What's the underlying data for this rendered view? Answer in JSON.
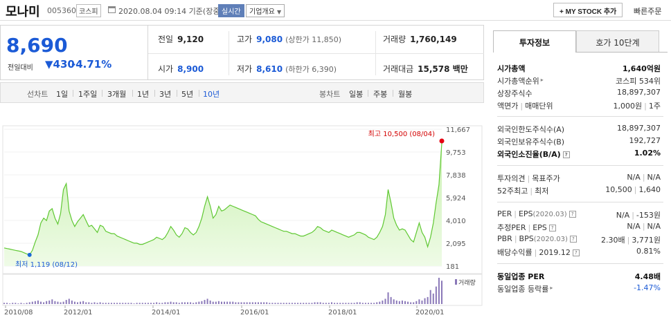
{
  "header": {
    "stock_name": "모나미",
    "stock_code": "005360",
    "market": "코스피",
    "datetime": "2020.08.04 09:14 기준(장중)",
    "realtime_label": "실시간",
    "overview_label": "기업개요",
    "mystock_label": "MY STOCK 추가",
    "quick_order_label": "빠른주문"
  },
  "quote": {
    "price": "8,690",
    "vs_label": "전일대비",
    "change": "430",
    "change_pct": "-4.71%",
    "prev_close_label": "전일",
    "prev_close": "9,120",
    "high_label": "고가",
    "high": "9,080",
    "upper_limit": "(상한가 11,850)",
    "volume_label": "거래량",
    "volume": "1,760,149",
    "open_label": "시가",
    "open": "8,900",
    "low_label": "저가",
    "low": "8,610",
    "lower_limit": "(하한가 6,390)",
    "amount_label": "거래대금",
    "amount": "15,578 백만"
  },
  "period_bar": {
    "line_label": "선차트",
    "line_periods": [
      "1일",
      "1주일",
      "3개월",
      "1년",
      "3년",
      "5년",
      "10년"
    ],
    "active_period": "10년",
    "candle_label": "봉차트",
    "candle_periods": [
      "일봉",
      "주봉",
      "월봉"
    ]
  },
  "chart_data": {
    "type": "area",
    "y_ticks": [
      "11,667",
      "9,753",
      "7,838",
      "5,924",
      "4,010",
      "2,095",
      "181"
    ],
    "ylim": [
      181,
      11667
    ],
    "x_ticks": [
      "2010/08",
      "2012/01",
      "2014/01",
      "2016/01",
      "2018/01",
      "2020/01"
    ],
    "max_annotation": "최고 10,500 (08/04)",
    "min_annotation": "최저 1,119 (08/12)",
    "volume_label": "거래량",
    "series": [
      {
        "values": [
          1700,
          1650,
          1600,
          1550,
          1500,
          1450,
          1400,
          1300,
          1200,
          1119,
          1500,
          2200,
          2800,
          3800,
          4200,
          4000,
          4800,
          5000,
          4200,
          3700,
          4600,
          6600,
          7100,
          4800,
          4000,
          3500,
          3900,
          4200,
          4500,
          4000,
          3500,
          3600,
          3300,
          3000,
          3600,
          3500,
          3100,
          3000,
          2900,
          2900,
          2700,
          2600,
          2500,
          2400,
          2300,
          2200,
          2100,
          2100,
          2000,
          2000,
          2100,
          2200,
          2300,
          2400,
          2600,
          2500,
          2400,
          2600,
          3000,
          3500,
          3200,
          2800,
          2600,
          2900,
          3400,
          3300,
          3000,
          2800,
          3000,
          3500,
          4200,
          5200,
          6000,
          5200,
          4200,
          4500,
          5200,
          4800,
          4900,
          5100,
          5300,
          5200,
          5100,
          5000,
          4900,
          4800,
          4700,
          4600,
          4500,
          4400,
          4100,
          3900,
          3800,
          3700,
          3600,
          3500,
          3400,
          3300,
          3200,
          3100,
          3100,
          3000,
          2900,
          2900,
          2800,
          2700,
          2700,
          2800,
          2900,
          3000,
          3200,
          3500,
          3400,
          3200,
          3100,
          3000,
          3200,
          3100,
          3000,
          2900,
          2800,
          2700,
          2600,
          2700,
          2800,
          3000,
          3000,
          2900,
          2800,
          2600,
          2500,
          2400,
          2600,
          3000,
          3500,
          4500,
          6600,
          5500,
          4200,
          3600,
          3200,
          3300,
          3200,
          2800,
          2400,
          2200,
          3000,
          3800,
          3000,
          2600,
          1800,
          2600,
          3800,
          5500,
          7000,
          10500
        ]
      }
    ],
    "volume": [
      2,
      2,
      1,
      2,
      2,
      1,
      2,
      1,
      2,
      3,
      4,
      5,
      6,
      4,
      3,
      5,
      6,
      8,
      5,
      4,
      3,
      4,
      7,
      9,
      6,
      4,
      3,
      4,
      5,
      3,
      3,
      2,
      3,
      2,
      3,
      2,
      2,
      2,
      2,
      2,
      2,
      2,
      2,
      2,
      2,
      2,
      1,
      2,
      2,
      2,
      2,
      2,
      2,
      2,
      3,
      2,
      2,
      3,
      3,
      4,
      3,
      3,
      2,
      3,
      3,
      3,
      3,
      2,
      3,
      4,
      5,
      7,
      9,
      6,
      4,
      4,
      5,
      4,
      4,
      4,
      4,
      4,
      3,
      3,
      3,
      3,
      3,
      3,
      3,
      3,
      3,
      3,
      3,
      3,
      2,
      2,
      2,
      2,
      2,
      2,
      2,
      2,
      2,
      2,
      2,
      2,
      2,
      2,
      2,
      2,
      3,
      3,
      3,
      2,
      2,
      2,
      3,
      2,
      2,
      2,
      2,
      2,
      2,
      2,
      2,
      3,
      3,
      2,
      2,
      2,
      2,
      2,
      3,
      4,
      6,
      9,
      20,
      12,
      8,
      6,
      5,
      6,
      5,
      4,
      3,
      3,
      5,
      8,
      6,
      10,
      12,
      24,
      18,
      30,
      45,
      40
    ]
  },
  "invest_info": {
    "tab_active": "투자정보",
    "tab_other": "호가 10단계",
    "rows": {
      "market_cap_label": "시가총액",
      "market_cap": "1,640억원",
      "market_cap_rank_label": "시가총액순위",
      "market_cap_rank": "코스피 534위",
      "listed_shares_label": "상장주식수",
      "listed_shares": "18,897,307",
      "par_value_label": "액면가",
      "trade_unit_label": "매매단위",
      "par_value": "1,000원",
      "trade_unit": "1주",
      "foreign_limit_label": "외국인한도주식수(A)",
      "foreign_limit": "18,897,307",
      "foreign_holding_label": "외국인보유주식수(B)",
      "foreign_holding": "192,727",
      "foreign_ratio_label": "외국인소진율(B/A)",
      "foreign_ratio": "1.02%",
      "opinion_label": "투자의견",
      "target_label": "목표주가",
      "opinion": "N/A",
      "target": "N/A",
      "week52_high_label": "52주최고",
      "week52_low_label": "최저",
      "week52_high": "10,500",
      "week52_low": "1,640",
      "per_label": "PER",
      "eps_label": "EPS",
      "eps_date": "(2020.03)",
      "per": "N/A",
      "eps": "-153원",
      "est_per_label": "추정PER",
      "est_eps_label": "EPS",
      "est_per": "N/A",
      "est_eps": "N/A",
      "pbr_label": "PBR",
      "bps_label": "BPS",
      "bps_date": "(2020.03)",
      "pbr": "2.30배",
      "bps": "3,771원",
      "dividend_label": "배당수익률",
      "dividend_date": "2019.12",
      "dividend": "0.81%",
      "sector_per_label": "동일업종 PER",
      "sector_per": "4.48배",
      "sector_change_label": "동일업종 등락률",
      "sector_change": "-1.47%"
    }
  }
}
